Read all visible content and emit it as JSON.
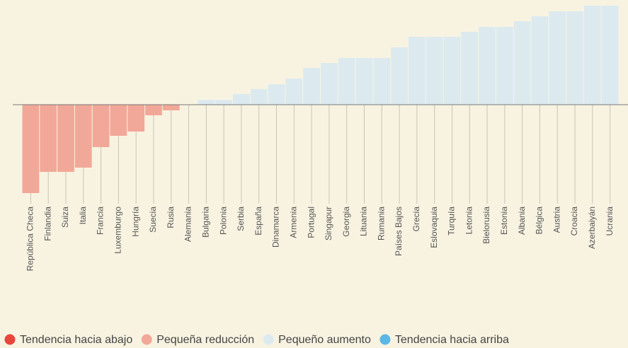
{
  "chart_data": {
    "type": "bar",
    "categories": [
      "República Checa",
      "Finlandia",
      "Suiza",
      "Italia",
      "Francia",
      "Luxemburgo",
      "Hungría",
      "Suecia",
      "Rusia",
      "Alemania",
      "Bulgaria",
      "Polonia",
      "Serbia",
      "España",
      "Dinamarca",
      "Armenia",
      "Portugal",
      "Singapur",
      "Georgia",
      "Lituania",
      "Rumania",
      "Países Bajos",
      "Grecia",
      "Eslovaquia",
      "Turquía",
      "Letonia",
      "Bielorusia",
      "Estonia",
      "Albania",
      "Bélgica",
      "Austria",
      "Croacia",
      "Azerbaiyán",
      "Ucrania"
    ],
    "values": [
      -125,
      -95,
      -95,
      -89,
      -60,
      -44,
      -38,
      -15,
      -8,
      0,
      7,
      7,
      15,
      22,
      29,
      37,
      52,
      59,
      66,
      66,
      66,
      81,
      96,
      96,
      96,
      103,
      110,
      110,
      118,
      125,
      132,
      132,
      140,
      140
    ],
    "colors": [
      "#f2a898",
      "#f2a898",
      "#f2a898",
      "#f2a898",
      "#f2a898",
      "#f2a898",
      "#f2a898",
      "#f2a898",
      "#f2a898",
      "#f2a898",
      "#dceaef",
      "#dceaef",
      "#dceaef",
      "#dceaef",
      "#dceaef",
      "#dceaef",
      "#dceaef",
      "#dceaef",
      "#dceaef",
      "#dceaef",
      "#dceaef",
      "#dceaef",
      "#dceaef",
      "#dceaef",
      "#dceaef",
      "#dceaef",
      "#dceaef",
      "#dceaef",
      "#dceaef",
      "#dceaef",
      "#dceaef",
      "#dceaef",
      "#dceaef",
      "#dceaef"
    ],
    "ylim": [
      -148,
      148
    ],
    "legend": [
      {
        "name": "Tendencia hacia abajo",
        "color": "#e8453c"
      },
      {
        "name": "Pequeña reducción",
        "color": "#f2a898"
      },
      {
        "name": "Pequeño aumento",
        "color": "#dceaef"
      },
      {
        "name": "Tendencia hacia arriba",
        "color": "#5bb8e4"
      }
    ]
  }
}
